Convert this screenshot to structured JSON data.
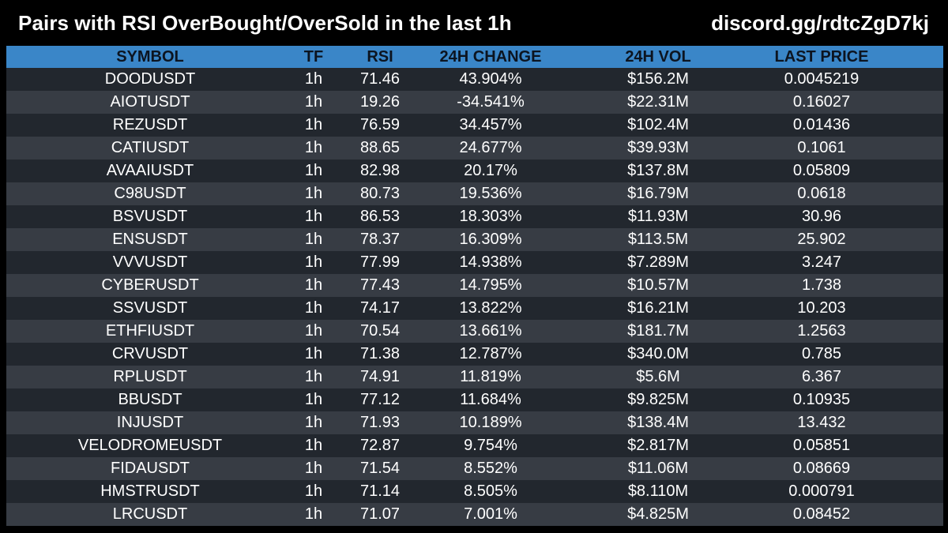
{
  "header": {
    "title": "Pairs with RSI OverBought/OverSold in the last 1h",
    "discord": "discord.gg/rdtcZgD7kj"
  },
  "colors": {
    "header_bg": "#3a86c8",
    "row_dark": "#22272e",
    "row_light": "#373c44",
    "background": "#000000"
  },
  "table": {
    "columns": [
      "SYMBOL",
      "TF",
      "RSI",
      "24H CHANGE",
      "24H VOL",
      "LAST PRICE"
    ],
    "rows": [
      [
        "DOODUSDT",
        "1h",
        "71.46",
        "43.904%",
        "$156.2M",
        "0.0045219"
      ],
      [
        "AIOTUSDT",
        "1h",
        "19.26",
        "-34.541%",
        "$22.31M",
        "0.16027"
      ],
      [
        "REZUSDT",
        "1h",
        "76.59",
        "34.457%",
        "$102.4M",
        "0.01436"
      ],
      [
        "CATIUSDT",
        "1h",
        "88.65",
        "24.677%",
        "$39.93M",
        "0.1061"
      ],
      [
        "AVAAIUSDT",
        "1h",
        "82.98",
        "20.17%",
        "$137.8M",
        "0.05809"
      ],
      [
        "C98USDT",
        "1h",
        "80.73",
        "19.536%",
        "$16.79M",
        "0.0618"
      ],
      [
        "BSVUSDT",
        "1h",
        "86.53",
        "18.303%",
        "$11.93M",
        "30.96"
      ],
      [
        "ENSUSDT",
        "1h",
        "78.37",
        "16.309%",
        "$113.5M",
        "25.902"
      ],
      [
        "VVVUSDT",
        "1h",
        "77.99",
        "14.938%",
        "$7.289M",
        "3.247"
      ],
      [
        "CYBERUSDT",
        "1h",
        "77.43",
        "14.795%",
        "$10.57M",
        "1.738"
      ],
      [
        "SSVUSDT",
        "1h",
        "74.17",
        "13.822%",
        "$16.21M",
        "10.203"
      ],
      [
        "ETHFIUSDT",
        "1h",
        "70.54",
        "13.661%",
        "$181.7M",
        "1.2563"
      ],
      [
        "CRVUSDT",
        "1h",
        "71.38",
        "12.787%",
        "$340.0M",
        "0.785"
      ],
      [
        "RPLUSDT",
        "1h",
        "74.91",
        "11.819%",
        "$5.6M",
        "6.367"
      ],
      [
        "BBUSDT",
        "1h",
        "77.12",
        "11.684%",
        "$9.825M",
        "0.10935"
      ],
      [
        "INJUSDT",
        "1h",
        "71.93",
        "10.189%",
        "$138.4M",
        "13.432"
      ],
      [
        "VELODROMEUSDT",
        "1h",
        "72.87",
        "9.754%",
        "$2.817M",
        "0.05851"
      ],
      [
        "FIDAUSDT",
        "1h",
        "71.54",
        "8.552%",
        "$11.06M",
        "0.08669"
      ],
      [
        "HMSTRUSDT",
        "1h",
        "71.14",
        "8.505%",
        "$8.110M",
        "0.000791"
      ],
      [
        "LRCUSDT",
        "1h",
        "71.07",
        "7.001%",
        "$4.825M",
        "0.08452"
      ]
    ]
  }
}
